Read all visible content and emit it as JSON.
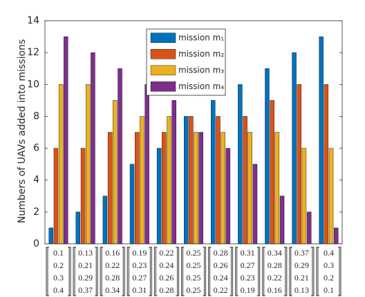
{
  "chart_data": {
    "type": "bar",
    "ylabel": "Numbers of UAVs added into missions",
    "categories": [
      [
        "0.1",
        "0.2",
        "0.3",
        "0.4"
      ],
      [
        "0.13",
        "0.21",
        "0.29",
        "0.37"
      ],
      [
        "0.16",
        "0.22",
        "0.28",
        "0.34"
      ],
      [
        "0.19",
        "0.23",
        "0.27",
        "0.31"
      ],
      [
        "0.22",
        "0.24",
        "0.26",
        "0.28"
      ],
      [
        "0.25",
        "0.25",
        "0.25",
        "0.25"
      ],
      [
        "0.28",
        "0.26",
        "0.24",
        "0.22"
      ],
      [
        "0.31",
        "0.27",
        "0.23",
        "0.19"
      ],
      [
        "0.34",
        "0.28",
        "0.22",
        "0.16"
      ],
      [
        "0.37",
        "0.29",
        "0.21",
        "0.13"
      ],
      [
        "0.4",
        "0.3",
        "0.2",
        "0.1"
      ]
    ],
    "series": [
      {
        "name": "mission m₁",
        "color": "#0072bd",
        "values": [
          1,
          2,
          3,
          5,
          6,
          8,
          9,
          10,
          11,
          12,
          13
        ]
      },
      {
        "name": "mission m₂",
        "color": "#d95319",
        "values": [
          6,
          6,
          7,
          7,
          7,
          8,
          8,
          8,
          9,
          10,
          10
        ]
      },
      {
        "name": "mission m₃",
        "color": "#edb120",
        "values": [
          10,
          10,
          9,
          8,
          8,
          7,
          7,
          7,
          7,
          6,
          6
        ]
      },
      {
        "name": "mission m₄",
        "color": "#7e2f8e",
        "values": [
          13,
          12,
          11,
          10,
          9,
          7,
          6,
          5,
          3,
          2,
          1
        ]
      }
    ],
    "ylim": [
      0,
      14
    ],
    "yticks": [
      0,
      2,
      4,
      6,
      8,
      10,
      12,
      14
    ],
    "legend": "upper center"
  }
}
